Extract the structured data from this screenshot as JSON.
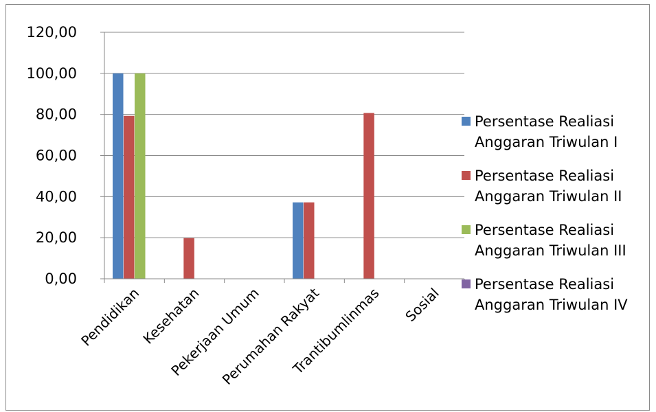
{
  "chart_data": {
    "type": "bar",
    "categories": [
      "Pendidikan",
      "Kesehatan",
      "Pekerjaan Umum",
      "Perumahan Rakyat",
      "Trantibumlinmas",
      "Sosial"
    ],
    "series": [
      {
        "name": "Persentase Realiasi Anggaran Triwulan I",
        "name_lines": [
          "Persentase Realiasi",
          "Anggaran Triwulan I"
        ],
        "color": "#4F81BD",
        "values": [
          100,
          0,
          0,
          37.2,
          0,
          0
        ]
      },
      {
        "name": "Persentase Realiasi Anggaran Triwulan II",
        "name_lines": [
          "Persentase Realiasi",
          "Anggaran Triwulan II"
        ],
        "color": "#C0504D",
        "values": [
          79.3,
          19.8,
          0,
          37.2,
          80.7,
          0
        ]
      },
      {
        "name": "Persentase Realiasi Anggaran Triwulan III",
        "name_lines": [
          "Persentase Realiasi",
          "Anggaran Triwulan III"
        ],
        "color": "#9BBB59",
        "values": [
          100,
          0,
          0,
          0,
          0,
          0
        ]
      },
      {
        "name": "Persentase Realiasi Anggaran Triwulan IV",
        "name_lines": [
          "Persentase Realiasi",
          "Anggaran Triwulan IV"
        ],
        "color": "#8064A2",
        "values": [
          0,
          0,
          0,
          0,
          0,
          0
        ]
      }
    ],
    "yticks": [
      "0,00",
      "20,00",
      "40,00",
      "60,00",
      "80,00",
      "100,00",
      "120,00"
    ],
    "ylim": [
      0,
      120
    ],
    "grid": true,
    "legend": "right",
    "title": "",
    "xlabel": "",
    "ylabel": ""
  }
}
